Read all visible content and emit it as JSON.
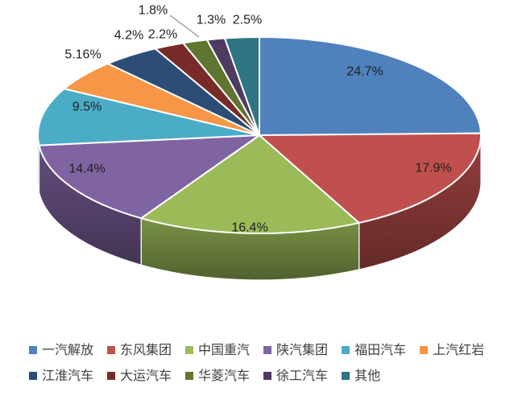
{
  "chart_data": {
    "type": "pie",
    "style": "3d",
    "title": "",
    "legend_position": "bottom",
    "direction": "clockwise",
    "start_angle_deg": 0,
    "background_color": "#FFFFFF",
    "label_color": "#1F1F1F",
    "legend_text_color": "#404040",
    "leader_line_color": "#A6A6A6",
    "separator_color": "#FFFFFF",
    "series": [
      {
        "label": "一汽解放",
        "value": 24.7,
        "display": "24.7%",
        "color": "#4F81BD"
      },
      {
        "label": "东风集团",
        "value": 17.9,
        "display": "17.9%",
        "color": "#C0504D"
      },
      {
        "label": "中国重汽",
        "value": 16.4,
        "display": "16.4%",
        "color": "#9BBB59"
      },
      {
        "label": "陕汽集团",
        "value": 14.4,
        "display": "14.4%",
        "color": "#8064A2"
      },
      {
        "label": "福田汽车",
        "value": 9.5,
        "display": "9.5%",
        "color": "#4BACC6"
      },
      {
        "label": "上汽红岩",
        "value": 5.16,
        "display": "5.16%",
        "color": "#F79646"
      },
      {
        "label": "江淮汽车",
        "value": 4.2,
        "display": "4.2%",
        "color": "#2C4D75"
      },
      {
        "label": "大运汽车",
        "value": 2.2,
        "display": "2.2%",
        "color": "#772C2A"
      },
      {
        "label": "华菱汽车",
        "value": 1.8,
        "display": "1.8%",
        "color": "#5F7530"
      },
      {
        "label": "徐工汽车",
        "value": 1.3,
        "display": "1.3%",
        "color": "#4D3B62"
      },
      {
        "label": "其他",
        "value": 2.5,
        "display": "2.5%",
        "color": "#2E7485"
      }
    ],
    "legend_rows": [
      [
        0,
        1,
        2,
        3,
        4,
        5
      ],
      [
        6,
        7,
        8,
        9,
        10
      ]
    ]
  }
}
